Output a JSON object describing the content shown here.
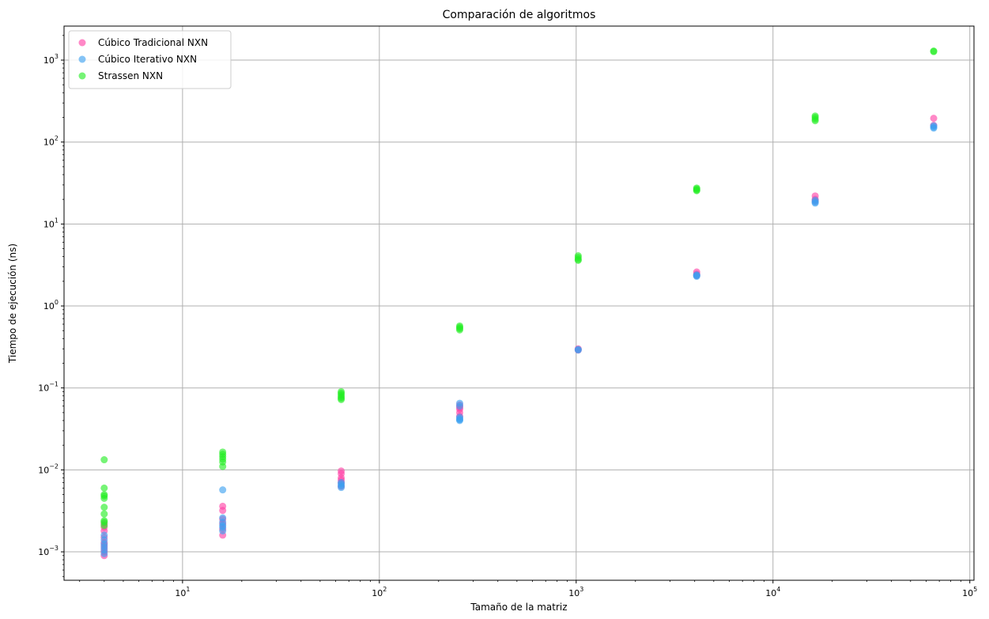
{
  "chart_data": {
    "type": "scatter",
    "title": "Comparación de algoritmos",
    "xlabel": "Tamaño de la matriz",
    "ylabel": "Tiempo de ejecución (ns)",
    "xscale": "log",
    "yscale": "log",
    "xlim": [
      2.5,
      105000
    ],
    "ylim": [
      0.00045,
      2600
    ],
    "grid": true,
    "legend_position": "top-left",
    "x_ticks": [
      {
        "value": 10,
        "base": "10",
        "exp": "1"
      },
      {
        "value": 100,
        "base": "10",
        "exp": "2"
      },
      {
        "value": 1000,
        "base": "10",
        "exp": "3"
      },
      {
        "value": 10000,
        "base": "10",
        "exp": "4"
      },
      {
        "value": 100000,
        "base": "10",
        "exp": "5"
      }
    ],
    "y_ticks": [
      {
        "value": 0.001,
        "base": "10",
        "exp": "−3"
      },
      {
        "value": 0.01,
        "base": "10",
        "exp": "−2"
      },
      {
        "value": 0.1,
        "base": "10",
        "exp": "−1"
      },
      {
        "value": 1,
        "base": "10",
        "exp": "0"
      },
      {
        "value": 10,
        "base": "10",
        "exp": "1"
      },
      {
        "value": 100,
        "base": "10",
        "exp": "2"
      },
      {
        "value": 1000,
        "base": "10",
        "exp": "3"
      }
    ],
    "series": [
      {
        "name": "Cúbico Tradicional NXN",
        "color": "#ff3fa4",
        "points": [
          [
            4,
            0.0009
          ],
          [
            4,
            0.001
          ],
          [
            4,
            0.0011
          ],
          [
            4,
            0.0012
          ],
          [
            4,
            0.0013
          ],
          [
            4,
            0.0015
          ],
          [
            4,
            0.0018
          ],
          [
            4,
            0.002
          ],
          [
            4,
            0.0022
          ],
          [
            16,
            0.0016
          ],
          [
            16,
            0.0019
          ],
          [
            16,
            0.0022
          ],
          [
            16,
            0.0025
          ],
          [
            16,
            0.0032
          ],
          [
            16,
            0.0036
          ],
          [
            64,
            0.0063
          ],
          [
            64,
            0.007
          ],
          [
            64,
            0.0075
          ],
          [
            64,
            0.008
          ],
          [
            64,
            0.009
          ],
          [
            64,
            0.0097
          ],
          [
            256,
            0.045
          ],
          [
            256,
            0.05
          ],
          [
            256,
            0.055
          ],
          [
            256,
            0.058
          ],
          [
            256,
            0.062
          ],
          [
            1024,
            0.29
          ],
          [
            1024,
            0.3
          ],
          [
            4096,
            2.35
          ],
          [
            4096,
            2.45
          ],
          [
            4096,
            2.6
          ],
          [
            16384,
            19
          ],
          [
            16384,
            20
          ],
          [
            16384,
            22
          ],
          [
            65536,
            160
          ],
          [
            65536,
            195
          ]
        ]
      },
      {
        "name": "Cúbico Iterativo NXN",
        "color": "#3a9ff0",
        "points": [
          [
            4,
            0.00095
          ],
          [
            4,
            0.00105
          ],
          [
            4,
            0.00115
          ],
          [
            4,
            0.00125
          ],
          [
            4,
            0.0014
          ],
          [
            4,
            0.0016
          ],
          [
            16,
            0.0018
          ],
          [
            16,
            0.002
          ],
          [
            16,
            0.0021
          ],
          [
            16,
            0.0023
          ],
          [
            16,
            0.0026
          ],
          [
            16,
            0.0057
          ],
          [
            64,
            0.0061
          ],
          [
            64,
            0.0064
          ],
          [
            64,
            0.0067
          ],
          [
            64,
            0.007
          ],
          [
            256,
            0.04
          ],
          [
            256,
            0.041
          ],
          [
            256,
            0.042
          ],
          [
            256,
            0.044
          ],
          [
            256,
            0.06
          ],
          [
            256,
            0.065
          ],
          [
            1024,
            0.29
          ],
          [
            1024,
            0.295
          ],
          [
            4096,
            2.3
          ],
          [
            4096,
            2.35
          ],
          [
            4096,
            2.4
          ],
          [
            16384,
            18
          ],
          [
            16384,
            18.5
          ],
          [
            16384,
            19.5
          ],
          [
            65536,
            148
          ],
          [
            65536,
            152
          ],
          [
            65536,
            158
          ]
        ]
      },
      {
        "name": "Strassen NXN",
        "color": "#22ee22",
        "points": [
          [
            4,
            0.0021
          ],
          [
            4,
            0.0023
          ],
          [
            4,
            0.0024
          ],
          [
            4,
            0.0029
          ],
          [
            4,
            0.0035
          ],
          [
            4,
            0.0045
          ],
          [
            4,
            0.0048
          ],
          [
            4,
            0.005
          ],
          [
            4,
            0.006
          ],
          [
            4,
            0.0133
          ],
          [
            16,
            0.011
          ],
          [
            16,
            0.0125
          ],
          [
            16,
            0.0135
          ],
          [
            16,
            0.0145
          ],
          [
            16,
            0.0155
          ],
          [
            16,
            0.0165
          ],
          [
            64,
            0.072
          ],
          [
            64,
            0.075
          ],
          [
            64,
            0.078
          ],
          [
            64,
            0.082
          ],
          [
            64,
            0.086
          ],
          [
            64,
            0.09
          ],
          [
            256,
            0.51
          ],
          [
            256,
            0.53
          ],
          [
            256,
            0.55
          ],
          [
            256,
            0.57
          ],
          [
            1024,
            3.6
          ],
          [
            1024,
            3.7
          ],
          [
            1024,
            3.9
          ],
          [
            1024,
            4.1
          ],
          [
            4096,
            25.5
          ],
          [
            4096,
            26
          ],
          [
            4096,
            26.8
          ],
          [
            4096,
            27.5
          ],
          [
            16384,
            182
          ],
          [
            16384,
            190
          ],
          [
            16384,
            200
          ],
          [
            16384,
            208
          ],
          [
            65536,
            1270
          ],
          [
            65536,
            1290
          ]
        ]
      }
    ]
  }
}
